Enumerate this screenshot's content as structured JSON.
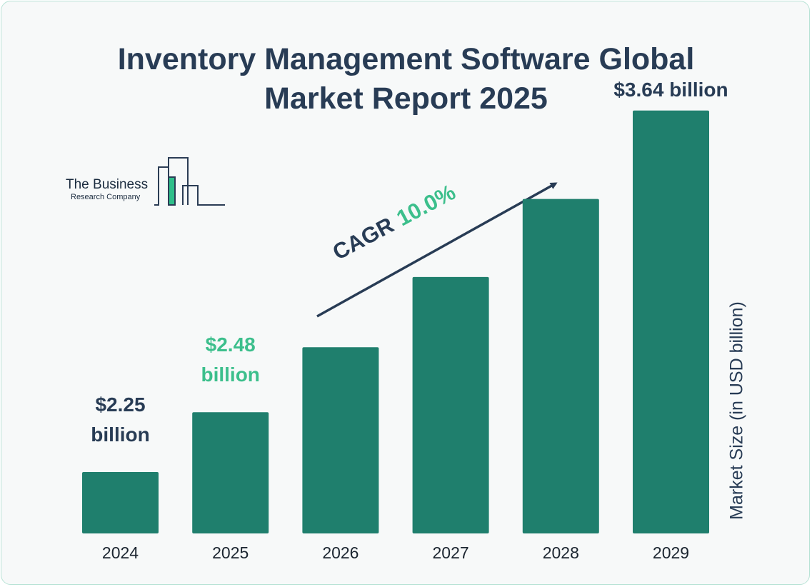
{
  "header": {
    "title_line1": "Inventory Management Software Global",
    "title_line2": "Market Report 2025"
  },
  "logo": {
    "line1": "The Business",
    "line2": "Research Company"
  },
  "cagr": {
    "label": "CAGR",
    "value": "10.0%"
  },
  "colors": {
    "bar": "#1f7f6d",
    "title": "#283c55",
    "accent": "#3cbf8c"
  },
  "chart_data": {
    "type": "bar",
    "title": "Inventory Management Software Global Market Report 2025",
    "categories": [
      "2024",
      "2025",
      "2026",
      "2027",
      "2028",
      "2029"
    ],
    "values": [
      2.25,
      2.48,
      2.73,
      3.0,
      3.3,
      3.64
    ],
    "ylabel": "Market Size (in USD billion)",
    "xlabel": "",
    "grid": false,
    "legend": "none",
    "annotations": [
      {
        "category": "2024",
        "line1": "$2.25",
        "line2": "billion",
        "color": "#283c55"
      },
      {
        "category": "2025",
        "line1": "$2.48",
        "line2": "billion",
        "color": "#3cbf8c"
      },
      {
        "category": "2029",
        "line1": "$3.64 billion",
        "line2": "",
        "color": "#283c55"
      }
    ]
  }
}
